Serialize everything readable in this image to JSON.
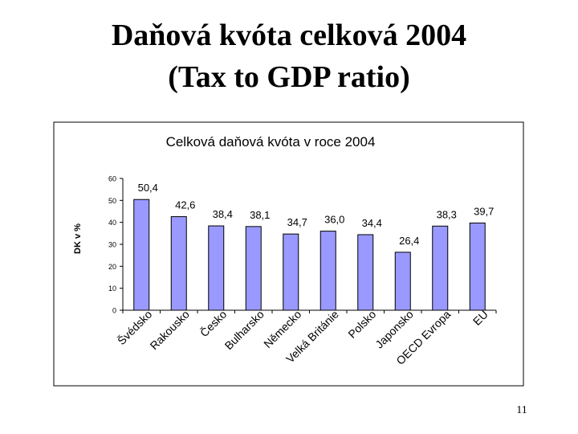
{
  "slide": {
    "title_line1": "Daňová kvóta celková 2004",
    "title_line2": "(Tax to GDP ratio)",
    "page_number": "11"
  },
  "colors": {
    "bar_fill": "#9999ff",
    "bar_stroke": "#000000",
    "plot_background": "#ffffff",
    "frame": "#000000"
  },
  "chart_data": {
    "type": "bar",
    "title": "Celková daňová kvóta v roce 2004",
    "xlabel": "",
    "ylabel": "DK v %",
    "ylim": [
      0,
      60
    ],
    "yticks": [
      0,
      10,
      20,
      30,
      40,
      50,
      60
    ],
    "grid": false,
    "legend": "none",
    "categories": [
      "Švédsko",
      "Rakousko",
      "Česko",
      "Bulharsko",
      "Německo",
      "Velká Británie",
      "Polsko",
      "Japonsko",
      "OECD Evropa",
      "EU"
    ],
    "values": [
      50.4,
      42.6,
      38.4,
      38.1,
      34.7,
      36.0,
      34.4,
      26.4,
      38.3,
      39.7
    ],
    "value_labels": [
      "50,4",
      "42,6",
      "38,4",
      "38,1",
      "34,7",
      "36,0",
      "34,4",
      "26,4",
      "38,3",
      "39,7"
    ]
  }
}
